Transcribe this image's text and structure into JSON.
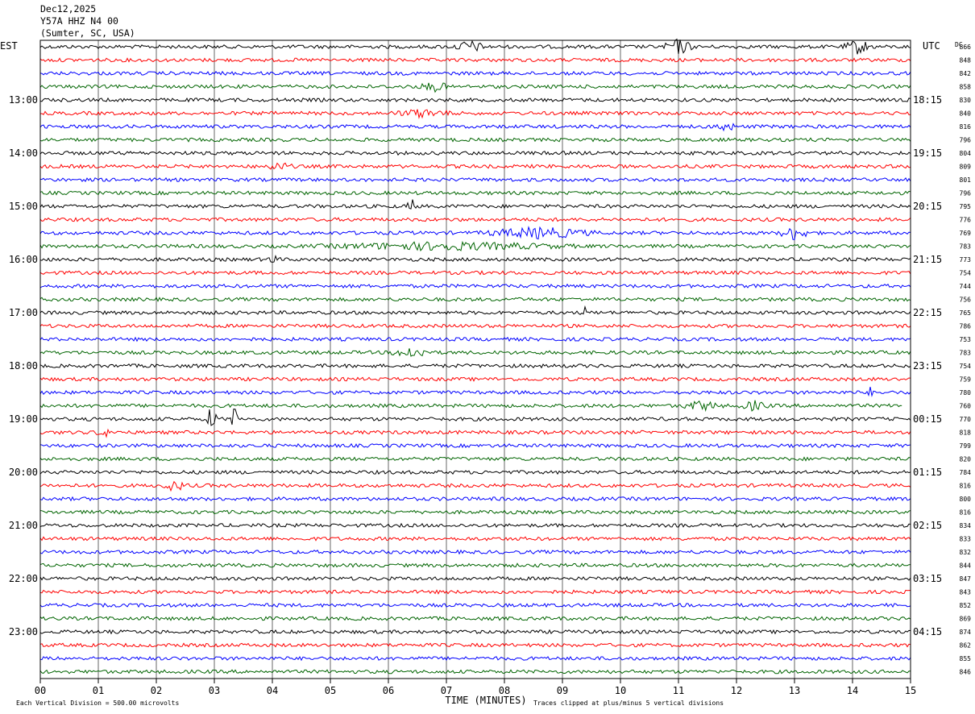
{
  "header": {
    "date": "Dec12,2025",
    "station": "Y57A HHZ N4 00",
    "location": "(Sumter, SC, USA)"
  },
  "chart_data": {
    "type": "line",
    "title": "",
    "left_axis_label": "EST",
    "right_axis_label": "UTC",
    "right_value_header": "DC",
    "xlabel": "TIME (MINUTES)",
    "xlim": [
      0,
      15
    ],
    "x_tick_labels": [
      "00",
      "01",
      "02",
      "03",
      "04",
      "05",
      "06",
      "07",
      "08",
      "09",
      "10",
      "11",
      "12",
      "13",
      "14",
      "15"
    ],
    "left_hour_labels": [
      "13:00",
      "14:00",
      "15:00",
      "16:00",
      "17:00",
      "18:00",
      "19:00",
      "20:00",
      "21:00",
      "22:00",
      "23:00"
    ],
    "right_hour_labels": [
      "18:15",
      "19:15",
      "20:15",
      "21:15",
      "22:15",
      "23:15",
      "00:15",
      "01:15",
      "02:15",
      "03:15",
      "04:15"
    ],
    "trace_colors": [
      "#000000",
      "#ff0000",
      "#0000ff",
      "#006400"
    ],
    "dc_offsets": [
      866,
      848,
      842,
      858,
      830,
      840,
      816,
      796,
      804,
      809,
      801,
      796,
      795,
      776,
      769,
      783,
      773,
      754,
      744,
      756,
      765,
      786,
      753,
      783,
      754,
      759,
      780,
      760,
      770,
      818,
      799,
      820,
      784,
      816,
      800,
      816,
      834,
      833,
      832,
      844,
      847,
      843,
      852,
      869,
      874,
      862,
      855,
      846
    ],
    "footer_left": "Each Vertical Division =  500.00 microvolts",
    "footer_right": "Traces clipped at plus/minus 5 vertical divisions"
  }
}
